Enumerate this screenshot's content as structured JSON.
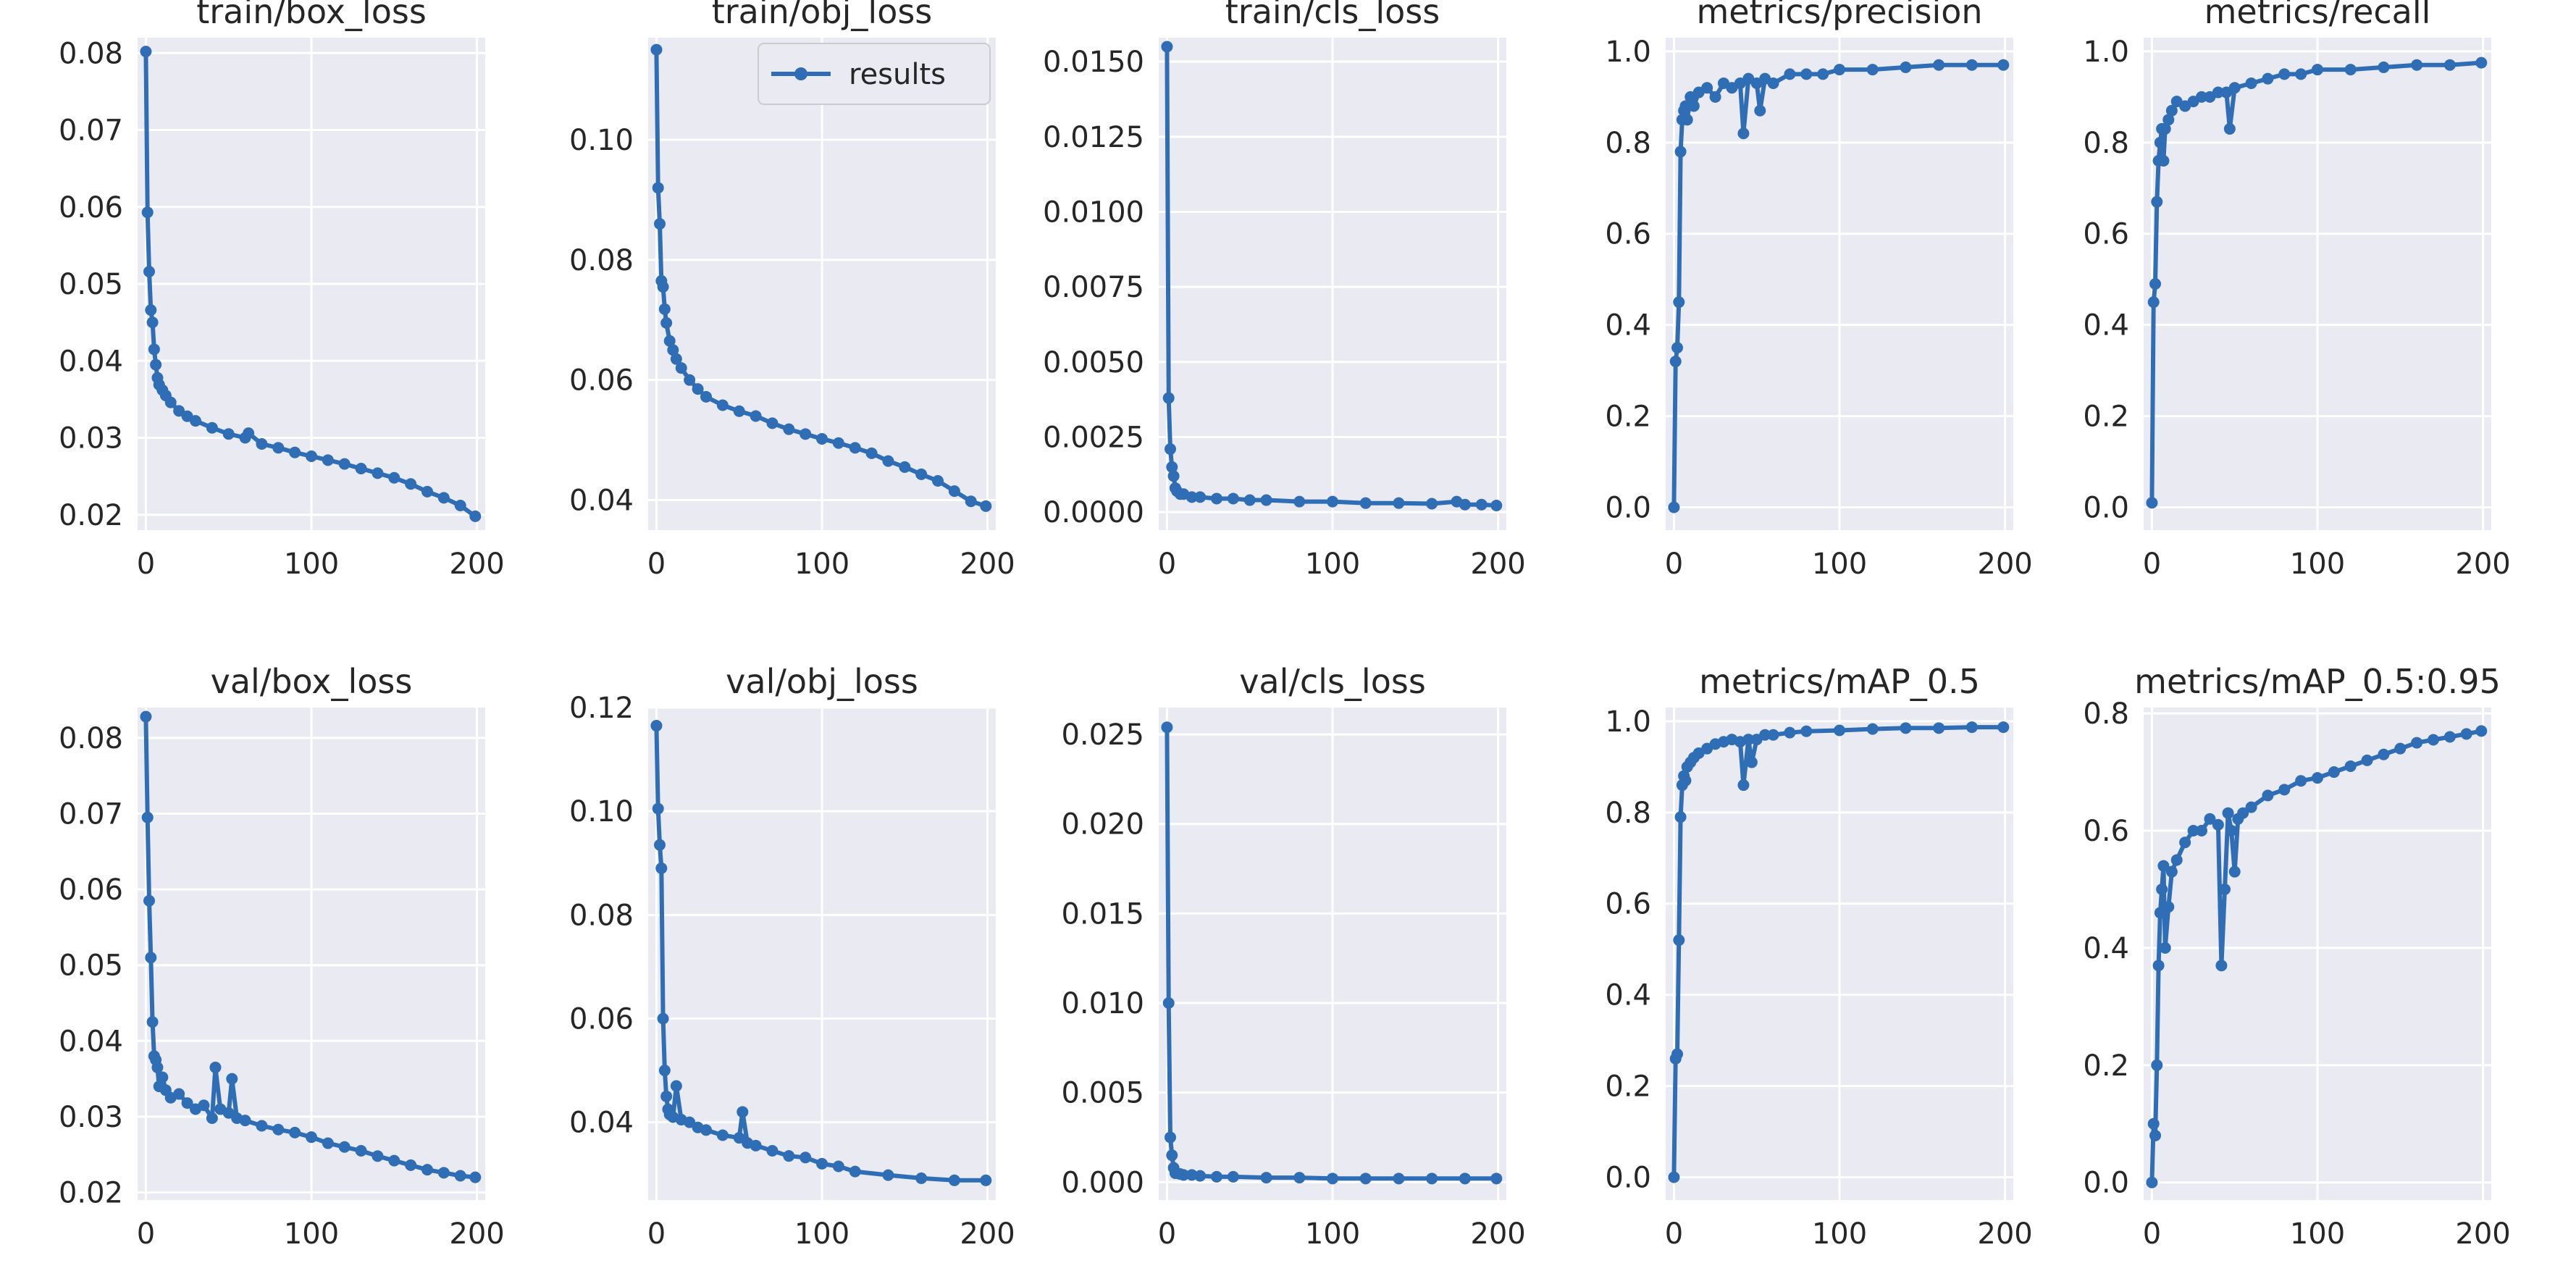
{
  "figure_title": "",
  "legend": {
    "label": "results",
    "panel": "train/obj_loss",
    "placement": "upper right"
  },
  "colors": {
    "series": "#2f6db5",
    "background": "#eaeaf2",
    "grid": "#ffffff"
  },
  "chart_data": [
    {
      "type": "line",
      "title": "train/box_loss",
      "xlim": [
        -5,
        205
      ],
      "xticks": [
        0,
        100,
        200
      ],
      "xtick_labels": [
        "0",
        "100",
        "200"
      ],
      "ylim": [
        0.018,
        0.082
      ],
      "yticks": [
        0.02,
        0.03,
        0.04,
        0.05,
        0.06,
        0.07,
        0.08
      ],
      "ytick_labels": [
        "0.02",
        "0.03",
        "0.04",
        "0.05",
        "0.06",
        "0.07",
        "0.08"
      ],
      "series": [
        {
          "name": "results",
          "x": [
            0,
            1,
            2,
            3,
            4,
            5,
            6,
            7,
            8,
            10,
            12,
            15,
            20,
            25,
            30,
            40,
            50,
            60,
            62,
            70,
            80,
            90,
            100,
            110,
            120,
            130,
            140,
            150,
            160,
            170,
            180,
            190,
            199
          ],
          "y": [
            0.0802,
            0.0593,
            0.0516,
            0.0466,
            0.045,
            0.0415,
            0.0395,
            0.0378,
            0.0369,
            0.0362,
            0.0355,
            0.0346,
            0.0335,
            0.0328,
            0.0322,
            0.0313,
            0.0305,
            0.03,
            0.0306,
            0.0292,
            0.0287,
            0.0281,
            0.0276,
            0.0271,
            0.0266,
            0.026,
            0.0254,
            0.0248,
            0.024,
            0.023,
            0.0222,
            0.0212,
            0.0198
          ]
        }
      ]
    },
    {
      "type": "line",
      "title": "train/obj_loss",
      "xlim": [
        -5,
        205
      ],
      "xticks": [
        0,
        100,
        200
      ],
      "xtick_labels": [
        "0",
        "100",
        "200"
      ],
      "ylim": [
        0.035,
        0.117
      ],
      "yticks": [
        0.04,
        0.06,
        0.08,
        0.1
      ],
      "ytick_labels": [
        "0.04",
        "0.06",
        "0.08",
        "0.10"
      ],
      "series": [
        {
          "name": "results",
          "x": [
            0,
            1,
            2,
            3,
            4,
            5,
            6,
            8,
            10,
            12,
            15,
            20,
            25,
            30,
            40,
            50,
            60,
            70,
            80,
            90,
            100,
            110,
            120,
            130,
            140,
            150,
            160,
            170,
            180,
            190,
            199
          ],
          "y": [
            0.115,
            0.092,
            0.086,
            0.0765,
            0.0755,
            0.0718,
            0.0695,
            0.0665,
            0.065,
            0.0635,
            0.062,
            0.06,
            0.0585,
            0.0572,
            0.0558,
            0.0548,
            0.054,
            0.0528,
            0.0518,
            0.051,
            0.0502,
            0.0495,
            0.0487,
            0.0478,
            0.0465,
            0.0455,
            0.0443,
            0.0432,
            0.0415,
            0.0398,
            0.039
          ]
        }
      ]
    },
    {
      "type": "line",
      "title": "train/cls_loss",
      "xlim": [
        -5,
        205
      ],
      "xticks": [
        0,
        100,
        200
      ],
      "xtick_labels": [
        "0",
        "100",
        "200"
      ],
      "ylim": [
        -0.0006,
        0.0158
      ],
      "yticks": [
        0.0,
        0.0025,
        0.005,
        0.0075,
        0.01,
        0.0125,
        0.015
      ],
      "ytick_labels": [
        "0.0000",
        "0.0025",
        "0.0050",
        "0.0075",
        "0.0100",
        "0.0125",
        "0.0150"
      ],
      "series": [
        {
          "name": "results",
          "x": [
            0,
            1,
            2,
            3,
            4,
            5,
            6,
            8,
            10,
            15,
            20,
            30,
            40,
            50,
            60,
            80,
            100,
            120,
            140,
            160,
            175,
            180,
            190,
            199
          ],
          "y": [
            0.0155,
            0.0038,
            0.0021,
            0.0015,
            0.0012,
            0.0008,
            0.0007,
            0.0006,
            0.0006,
            0.0005,
            0.0005,
            0.00045,
            0.00045,
            0.0004,
            0.0004,
            0.00035,
            0.00035,
            0.0003,
            0.0003,
            0.00028,
            0.00035,
            0.00025,
            0.00025,
            0.00022
          ]
        }
      ]
    },
    {
      "type": "line",
      "title": "metrics/precision",
      "xlim": [
        -5,
        205
      ],
      "xticks": [
        0,
        100,
        200
      ],
      "xtick_labels": [
        "0",
        "100",
        "200"
      ],
      "ylim": [
        -0.05,
        1.03
      ],
      "yticks": [
        0.0,
        0.2,
        0.4,
        0.6,
        0.8,
        1.0
      ],
      "ytick_labels": [
        "0.0",
        "0.2",
        "0.4",
        "0.6",
        "0.8",
        "1.0"
      ],
      "series": [
        {
          "name": "results",
          "x": [
            0,
            1,
            2,
            3,
            4,
            5,
            6,
            7,
            8,
            10,
            12,
            15,
            20,
            25,
            30,
            35,
            40,
            42,
            45,
            50,
            52,
            55,
            60,
            70,
            80,
            90,
            100,
            120,
            140,
            160,
            180,
            199
          ],
          "y": [
            0.0,
            0.32,
            0.35,
            0.45,
            0.78,
            0.85,
            0.87,
            0.88,
            0.85,
            0.9,
            0.88,
            0.91,
            0.92,
            0.9,
            0.93,
            0.92,
            0.93,
            0.82,
            0.94,
            0.93,
            0.87,
            0.94,
            0.93,
            0.95,
            0.95,
            0.95,
            0.96,
            0.96,
            0.965,
            0.97,
            0.97,
            0.97
          ]
        }
      ]
    },
    {
      "type": "line",
      "title": "metrics/recall",
      "xlim": [
        -5,
        205
      ],
      "xticks": [
        0,
        100,
        200
      ],
      "xtick_labels": [
        "0",
        "100",
        "200"
      ],
      "ylim": [
        -0.05,
        1.03
      ],
      "yticks": [
        0.0,
        0.2,
        0.4,
        0.6,
        0.8,
        1.0
      ],
      "ytick_labels": [
        "0.0",
        "0.2",
        "0.4",
        "0.6",
        "0.8",
        "1.0"
      ],
      "series": [
        {
          "name": "results",
          "x": [
            0,
            1,
            2,
            3,
            4,
            5,
            6,
            7,
            8,
            10,
            12,
            15,
            20,
            25,
            30,
            35,
            40,
            45,
            47,
            50,
            60,
            70,
            80,
            90,
            100,
            120,
            140,
            160,
            180,
            199
          ],
          "y": [
            0.01,
            0.45,
            0.49,
            0.67,
            0.76,
            0.8,
            0.83,
            0.76,
            0.83,
            0.85,
            0.87,
            0.89,
            0.88,
            0.89,
            0.9,
            0.9,
            0.91,
            0.91,
            0.83,
            0.92,
            0.93,
            0.94,
            0.95,
            0.95,
            0.96,
            0.96,
            0.965,
            0.97,
            0.97,
            0.975
          ]
        }
      ]
    },
    {
      "type": "line",
      "title": "val/box_loss",
      "xlim": [
        -5,
        205
      ],
      "xticks": [
        0,
        100,
        200
      ],
      "xtick_labels": [
        "0",
        "100",
        "200"
      ],
      "ylim": [
        0.019,
        0.084
      ],
      "yticks": [
        0.02,
        0.03,
        0.04,
        0.05,
        0.06,
        0.07,
        0.08
      ],
      "ytick_labels": [
        "0.02",
        "0.03",
        "0.04",
        "0.05",
        "0.06",
        "0.07",
        "0.08"
      ],
      "series": [
        {
          "name": "results",
          "x": [
            0,
            1,
            2,
            3,
            4,
            5,
            6,
            7,
            8,
            10,
            12,
            15,
            20,
            25,
            30,
            35,
            40,
            42,
            45,
            50,
            52,
            55,
            60,
            70,
            80,
            90,
            100,
            110,
            120,
            130,
            140,
            150,
            160,
            170,
            180,
            190,
            199
          ],
          "y": [
            0.0828,
            0.0695,
            0.0585,
            0.051,
            0.0425,
            0.038,
            0.0375,
            0.0365,
            0.034,
            0.0352,
            0.0335,
            0.0325,
            0.033,
            0.0318,
            0.031,
            0.0315,
            0.0298,
            0.0365,
            0.031,
            0.0305,
            0.035,
            0.0298,
            0.0295,
            0.0288,
            0.0283,
            0.0279,
            0.0273,
            0.0265,
            0.026,
            0.0255,
            0.0248,
            0.0242,
            0.0236,
            0.023,
            0.0226,
            0.0222,
            0.022
          ]
        }
      ]
    },
    {
      "type": "line",
      "title": "val/obj_loss",
      "xlim": [
        -5,
        205
      ],
      "xticks": [
        0,
        100,
        200
      ],
      "xtick_labels": [
        "0",
        "100",
        "200"
      ],
      "ylim": [
        0.025,
        0.12
      ],
      "yticks": [
        0.04,
        0.06,
        0.08,
        0.1,
        0.12
      ],
      "ytick_labels": [
        "0.04",
        "0.06",
        "0.08",
        "0.10",
        "0.12"
      ],
      "series": [
        {
          "name": "results",
          "x": [
            0,
            1,
            2,
            3,
            4,
            5,
            6,
            7,
            8,
            10,
            12,
            15,
            20,
            25,
            30,
            40,
            50,
            52,
            55,
            60,
            70,
            80,
            90,
            100,
            110,
            120,
            140,
            160,
            180,
            199
          ],
          "y": [
            0.1165,
            0.1005,
            0.0935,
            0.089,
            0.06,
            0.05,
            0.045,
            0.0425,
            0.0415,
            0.041,
            0.047,
            0.0405,
            0.04,
            0.039,
            0.0385,
            0.0375,
            0.037,
            0.042,
            0.036,
            0.0355,
            0.0345,
            0.0335,
            0.0332,
            0.032,
            0.0315,
            0.0305,
            0.0298,
            0.0292,
            0.0288,
            0.0288
          ]
        }
      ]
    },
    {
      "type": "line",
      "title": "val/cls_loss",
      "xlim": [
        -5,
        205
      ],
      "xticks": [
        0,
        100,
        200
      ],
      "xtick_labels": [
        "0",
        "100",
        "200"
      ],
      "ylim": [
        -0.001,
        0.0265
      ],
      "yticks": [
        0.0,
        0.005,
        0.01,
        0.015,
        0.02,
        0.025
      ],
      "ytick_labels": [
        "0.000",
        "0.005",
        "0.010",
        "0.015",
        "0.020",
        "0.025"
      ],
      "series": [
        {
          "name": "results",
          "x": [
            0,
            1,
            2,
            3,
            4,
            5,
            6,
            8,
            10,
            15,
            20,
            30,
            40,
            60,
            80,
            100,
            120,
            140,
            160,
            180,
            199
          ],
          "y": [
            0.0254,
            0.01,
            0.0025,
            0.0015,
            0.0008,
            0.0005,
            0.0005,
            0.00045,
            0.0004,
            0.0004,
            0.00035,
            0.0003,
            0.0003,
            0.00025,
            0.00025,
            0.0002,
            0.0002,
            0.0002,
            0.0002,
            0.0002,
            0.0002
          ]
        }
      ]
    },
    {
      "type": "line",
      "title": "metrics/mAP_0.5",
      "xlim": [
        -5,
        205
      ],
      "xticks": [
        0,
        100,
        200
      ],
      "xtick_labels": [
        "0",
        "100",
        "200"
      ],
      "ylim": [
        -0.05,
        1.03
      ],
      "yticks": [
        0.0,
        0.2,
        0.4,
        0.6,
        0.8,
        1.0
      ],
      "ytick_labels": [
        "0.0",
        "0.2",
        "0.4",
        "0.6",
        "0.8",
        "1.0"
      ],
      "series": [
        {
          "name": "results",
          "x": [
            0,
            1,
            2,
            3,
            4,
            5,
            6,
            7,
            8,
            10,
            12,
            15,
            20,
            25,
            30,
            35,
            40,
            42,
            45,
            47,
            50,
            55,
            60,
            70,
            80,
            100,
            120,
            140,
            160,
            180,
            199
          ],
          "y": [
            0.0,
            0.26,
            0.27,
            0.52,
            0.79,
            0.86,
            0.88,
            0.87,
            0.9,
            0.91,
            0.92,
            0.93,
            0.94,
            0.95,
            0.955,
            0.96,
            0.955,
            0.86,
            0.96,
            0.91,
            0.96,
            0.97,
            0.97,
            0.975,
            0.978,
            0.98,
            0.983,
            0.985,
            0.985,
            0.987,
            0.987
          ]
        }
      ]
    },
    {
      "type": "line",
      "title": "metrics/mAP_0.5:0.95",
      "xlim": [
        -5,
        205
      ],
      "xticks": [
        0,
        100,
        200
      ],
      "xtick_labels": [
        "0",
        "100",
        "200"
      ],
      "ylim": [
        -0.03,
        0.81
      ],
      "yticks": [
        0.0,
        0.2,
        0.4,
        0.6,
        0.8
      ],
      "ytick_labels": [
        "0.0",
        "0.2",
        "0.4",
        "0.6",
        "0.8"
      ],
      "series": [
        {
          "name": "results",
          "x": [
            0,
            1,
            2,
            3,
            4,
            5,
            6,
            7,
            8,
            10,
            12,
            15,
            20,
            25,
            30,
            35,
            40,
            42,
            44,
            46,
            48,
            50,
            52,
            55,
            60,
            70,
            80,
            90,
            100,
            110,
            120,
            130,
            140,
            150,
            160,
            170,
            180,
            190,
            199
          ],
          "y": [
            0.0,
            0.1,
            0.08,
            0.2,
            0.37,
            0.46,
            0.5,
            0.54,
            0.4,
            0.47,
            0.53,
            0.55,
            0.58,
            0.6,
            0.6,
            0.62,
            0.61,
            0.37,
            0.5,
            0.63,
            0.6,
            0.53,
            0.62,
            0.63,
            0.64,
            0.66,
            0.67,
            0.685,
            0.69,
            0.7,
            0.71,
            0.72,
            0.73,
            0.74,
            0.75,
            0.755,
            0.76,
            0.765,
            0.77
          ]
        }
      ]
    }
  ]
}
